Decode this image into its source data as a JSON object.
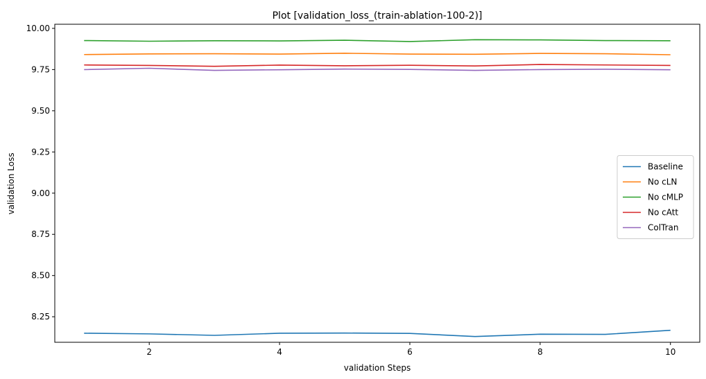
{
  "chart_data": {
    "type": "line",
    "title": "Plot [validation_loss_(train-ablation-100-2)]",
    "xlabel": "validation Steps",
    "ylabel": "validation Loss",
    "xlim": [
      0.55,
      10.45
    ],
    "ylim": [
      8.095,
      10.025
    ],
    "x_ticks": [
      2,
      4,
      6,
      8,
      10
    ],
    "y_ticks": [
      8.25,
      8.5,
      8.75,
      9.0,
      9.25,
      9.5,
      9.75,
      10.0
    ],
    "y_tick_labels": [
      "8.25",
      "8.50",
      "8.75",
      "9.00",
      "9.25",
      "9.50",
      "9.75",
      "10.00"
    ],
    "grid": false,
    "legend_position": "center-right",
    "x": [
      1,
      2,
      3,
      4,
      5,
      6,
      7,
      8,
      9,
      10
    ],
    "series": [
      {
        "name": "Baseline",
        "color": "#1f77b4",
        "values": [
          8.15,
          8.146,
          8.137,
          8.15,
          8.151,
          8.149,
          8.13,
          8.144,
          8.143,
          8.168
        ]
      },
      {
        "name": "No cLN",
        "color": "#ff7f0e",
        "values": [
          9.841,
          9.845,
          9.846,
          9.844,
          9.849,
          9.844,
          9.843,
          9.848,
          9.846,
          9.84
        ]
      },
      {
        "name": "No cMLP",
        "color": "#2ca02c",
        "values": [
          9.926,
          9.922,
          9.925,
          9.924,
          9.928,
          9.92,
          9.931,
          9.93,
          9.926,
          9.925
        ]
      },
      {
        "name": "No cAtt",
        "color": "#d62728",
        "values": [
          9.778,
          9.775,
          9.77,
          9.777,
          9.773,
          9.776,
          9.772,
          9.781,
          9.778,
          9.775
        ]
      },
      {
        "name": "ColTran",
        "color": "#9467bd",
        "values": [
          9.75,
          9.758,
          9.745,
          9.749,
          9.753,
          9.751,
          9.745,
          9.75,
          9.752,
          9.749
        ]
      }
    ]
  }
}
